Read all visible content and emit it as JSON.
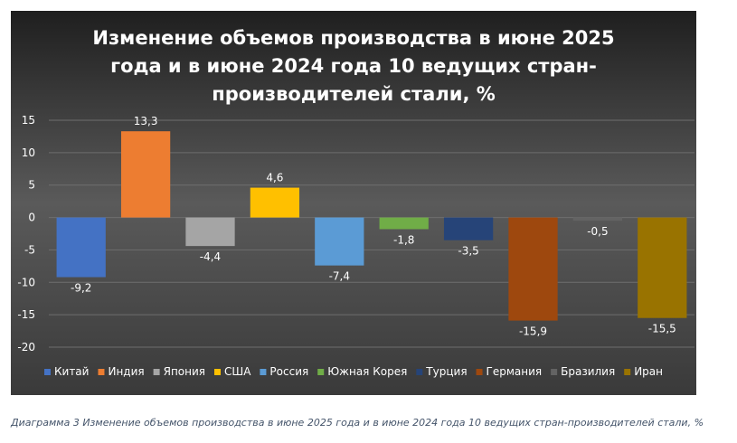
{
  "caption": "Диаграмма 3 Изменение объемов производства в июне 2025 года и в июне 2024 года 10 ведущих стран-производителей стали, %",
  "colors": {
    "background_top": "#1f1f1f",
    "background_mid": "#5a5a5a",
    "text": "#ffffff",
    "gridline": "#6e6e6e"
  },
  "chart_data": {
    "type": "bar",
    "title": "Изменение объемов производства в июне 2025 года и в июне 2024 года 10 ведущих стран-производителей стали, %",
    "title_lines": [
      "Изменение объемов производства в июне 2025",
      "года и в июне 2024 года 10 ведущих стран-",
      "производителей стали, %"
    ],
    "xlabel": "",
    "ylabel": "",
    "ylim": [
      -20,
      15
    ],
    "yticks": [
      15,
      10,
      5,
      0,
      -5,
      -10,
      -15,
      -20
    ],
    "grid": true,
    "legend_position": "bottom",
    "series": [
      {
        "name": "Китай",
        "value": -9.2,
        "label": "-9,2",
        "color": "#4472c4"
      },
      {
        "name": "Индия",
        "value": 13.3,
        "label": "13,3",
        "color": "#ed7d31"
      },
      {
        "name": "Япония",
        "value": -4.4,
        "label": "-4,4",
        "color": "#a5a5a5"
      },
      {
        "name": "США",
        "value": 4.6,
        "label": "4,6",
        "color": "#ffc000"
      },
      {
        "name": "Россия",
        "value": -7.4,
        "label": "-7,4",
        "color": "#5b9bd5"
      },
      {
        "name": "Южная Корея",
        "value": -1.8,
        "label": "-1,8",
        "color": "#70ad47"
      },
      {
        "name": "Турция",
        "value": -3.5,
        "label": "-3,5",
        "color": "#264478"
      },
      {
        "name": "Германия",
        "value": -15.9,
        "label": "-15,9",
        "color": "#9e480e"
      },
      {
        "name": "Бразилия",
        "value": -0.5,
        "label": "-0,5",
        "color": "#636363"
      },
      {
        "name": "Иран",
        "value": -15.5,
        "label": "-15,5",
        "color": "#997300"
      }
    ]
  }
}
